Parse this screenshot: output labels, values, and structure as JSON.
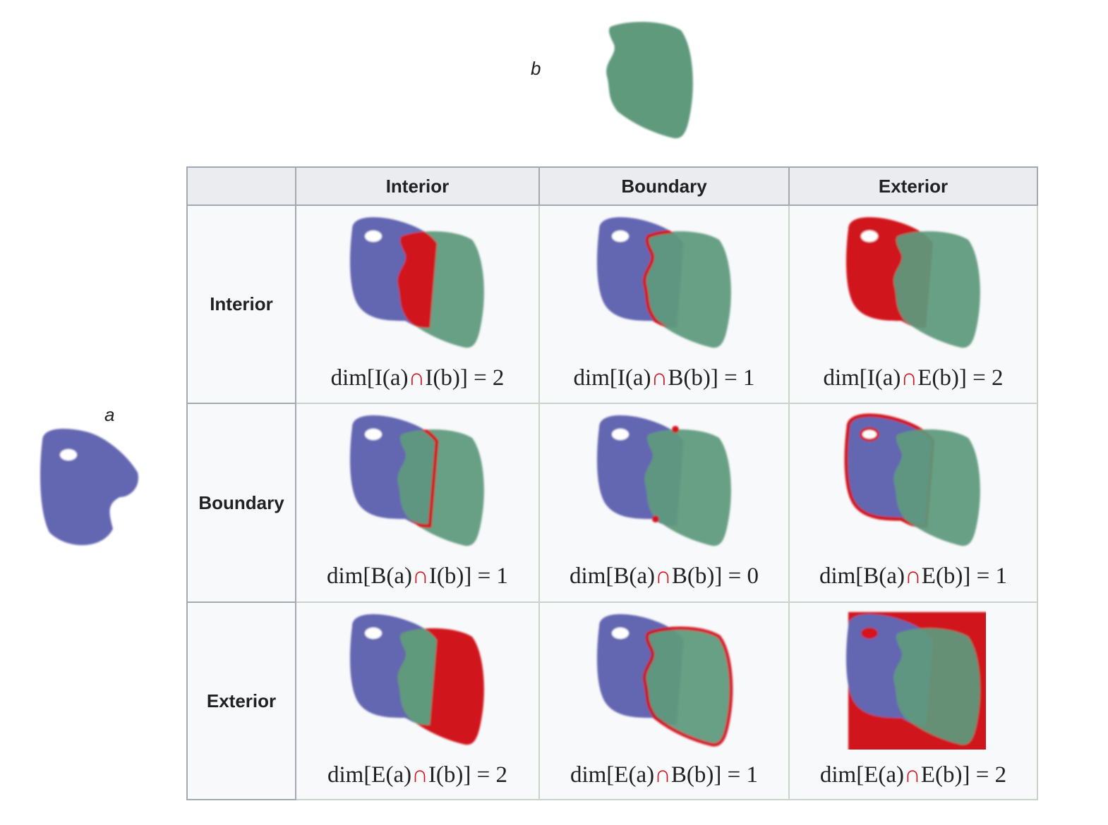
{
  "labels": {
    "a": "a",
    "b": "b"
  },
  "table": {
    "columns": [
      "Interior",
      "Boundary",
      "Exterior"
    ],
    "rows": [
      {
        "header": "Interior",
        "cells": [
          {
            "start": "dim[I(a)",
            "operator": "∩",
            "end": "I(b)] = 2"
          },
          {
            "start": "dim[I(a)",
            "operator": "∩",
            "end": "B(b)] = 1"
          },
          {
            "start": "dim[I(a)",
            "operator": "∩",
            "end": "E(b)] = 2"
          }
        ]
      },
      {
        "header": "Boundary",
        "cells": [
          {
            "start": "dim[B(a)",
            "operator": "∩",
            "end": "I(b)] = 1"
          },
          {
            "start": "dim[B(a)",
            "operator": "∩",
            "end": "B(b)] = 0"
          },
          {
            "start": "dim[B(a)",
            "operator": "∩",
            "end": "E(b)] = 1"
          }
        ]
      },
      {
        "header": "Exterior",
        "cells": [
          {
            "start": "dim[E(a)",
            "operator": "∩",
            "end": "I(b)] = 2"
          },
          {
            "start": "dim[E(a)",
            "operator": "∩",
            "end": "B(b)] = 1"
          },
          {
            "start": "dim[E(a)",
            "operator": "∩",
            "end": "E(b)] = 2"
          }
        ]
      }
    ]
  }
}
